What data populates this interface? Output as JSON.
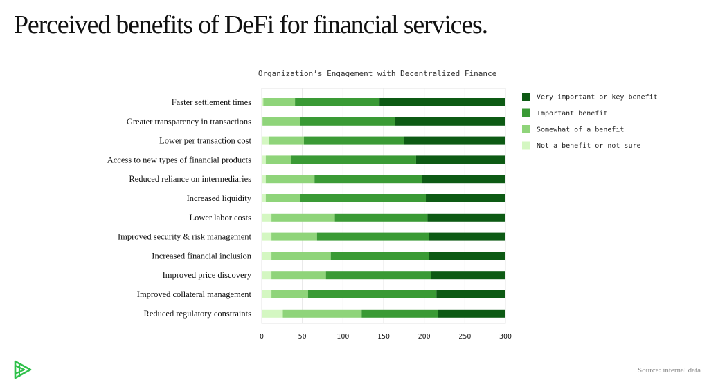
{
  "page": {
    "title": "Perceived benefits of DeFi for financial services.",
    "source": "Source: internal data",
    "logo_icon": "brand-logo-icon"
  },
  "colors": {
    "very_important": "#0d5a14",
    "important": "#3a9a35",
    "somewhat": "#8fd47a",
    "not_benefit": "#d4f7c2",
    "logo": "#2fc04a"
  },
  "chart_data": {
    "type": "bar",
    "orientation": "horizontal",
    "stacked": true,
    "title": "Organization’s Engagement with Decentralized Finance",
    "categories": [
      "Faster settlement times",
      "Greater transparency in transactions",
      "Lower per transaction cost",
      "Access to new types of financial products",
      "Reduced reliance on intermediaries",
      "Increased liquidity",
      "Lower labor costs",
      "Improved security & risk management",
      "Increased financial inclusion",
      "Improved price discovery",
      "Improved collateral management",
      "Reduced regulatory constraints"
    ],
    "series": [
      {
        "name": "Not a benefit or not sure",
        "color": "#d4f7c2",
        "values": [
          2,
          1,
          9,
          5,
          5,
          5,
          12,
          12,
          12,
          12,
          12,
          26
        ]
      },
      {
        "name": "Somewhat of a benefit",
        "color": "#8fd47a",
        "values": [
          39,
          46,
          43,
          31,
          60,
          42,
          78,
          56,
          73,
          67,
          45,
          97
        ]
      },
      {
        "name": "Important benefit",
        "color": "#3a9a35",
        "values": [
          104,
          117,
          123,
          154,
          132,
          155,
          114,
          138,
          121,
          129,
          158,
          94
        ]
      },
      {
        "name": "Very important or key benefit",
        "color": "#0d5a14",
        "values": [
          155,
          136,
          125,
          110,
          103,
          98,
          96,
          94,
          94,
          92,
          85,
          83
        ]
      }
    ],
    "xlim": [
      0,
      300
    ],
    "xticks": [
      0,
      50,
      100,
      150,
      200,
      250,
      300
    ],
    "grid": true,
    "legend_position": "right",
    "legend_order": [
      "Very important or key benefit",
      "Important benefit",
      "Somewhat of a benefit",
      "Not a benefit or not sure"
    ]
  }
}
